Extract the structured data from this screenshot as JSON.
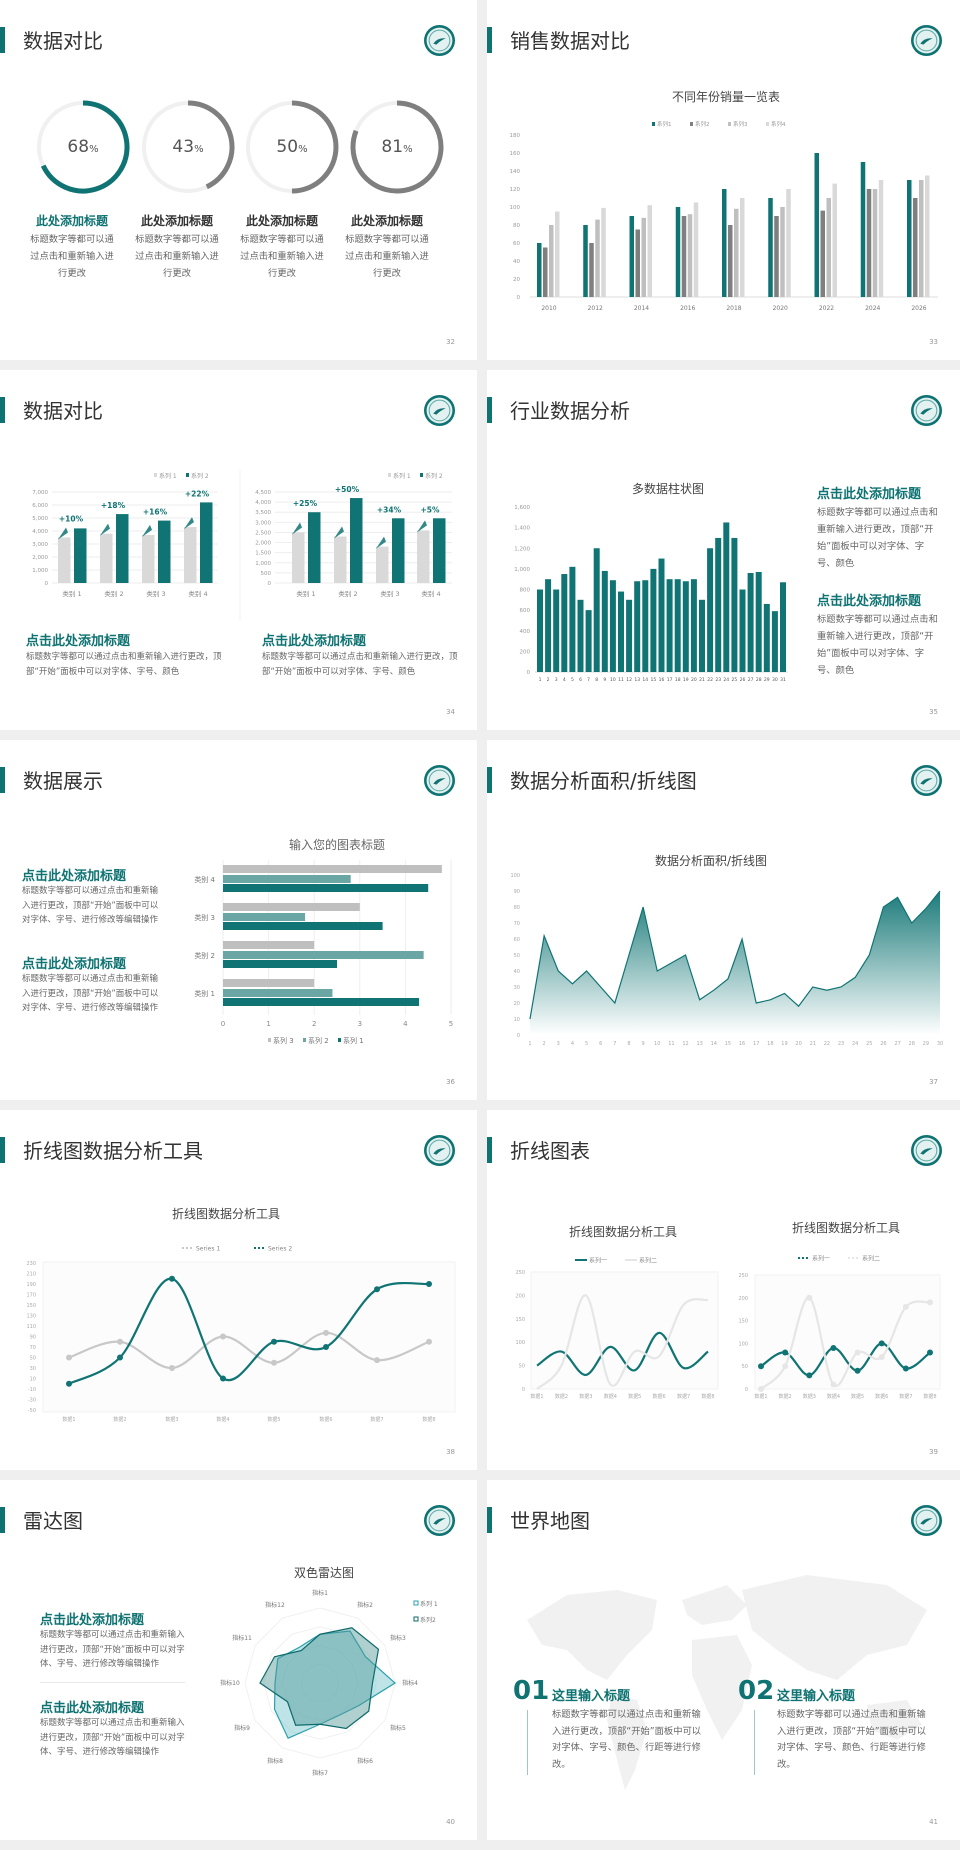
{
  "slides": [
    {
      "title": "数据对比",
      "page": "32",
      "cards": [
        {
          "value": "68",
          "unit": "%",
          "percent": 68,
          "title": "此处添加标题",
          "desc": "标题数字等都可以通过点击和重新输入进行更改"
        },
        {
          "value": "43",
          "unit": "%",
          "percent": 43,
          "title": "此处添加标题",
          "desc": "标题数字等都可以通过点击和重新输入进行更改"
        },
        {
          "value": "50",
          "unit": "%",
          "percent": 50,
          "title": "此处添加标题",
          "desc": "标题数字等都可以通过点击和重新输入进行更改"
        },
        {
          "value": "81",
          "unit": "%",
          "percent": 81,
          "title": "此处添加标题",
          "desc": "标题数字等都可以通过点击和重新输入进行更改"
        }
      ]
    },
    {
      "title": "销售数据对比",
      "page": "33"
    },
    {
      "title": "数据对比",
      "page": "34",
      "blocks": [
        {
          "title": "点击此处添加标题",
          "desc": "标题数字等都可以通过点击和重新输入进行更改，顶部“开始”面板中可以对字体、字号、颜色"
        },
        {
          "title": "点击此处添加标题",
          "desc": "标题数字等都可以通过点击和重新输入进行更改，顶部“开始”面板中可以对字体、字号、颜色"
        }
      ]
    },
    {
      "title": "行业数据分析",
      "page": "35",
      "blocks": [
        {
          "title": "点击此处添加标题",
          "desc": "标题数字等都可以通过点击和重新输入进行更改，顶部“开始”面板中可以对字体、字号、颜色"
        },
        {
          "title": "点击此处添加标题",
          "desc": "标题数字等都可以通过点击和重新输入进行更改，顶部“开始”面板中可以对字体、字号、颜色"
        }
      ]
    },
    {
      "title": "数据展示",
      "page": "36",
      "blocks": [
        {
          "title": "点击此处添加标题",
          "desc": "标题数字等都可以通过点击和重新输入进行更改，顶部“开始”面板中可以对字体、字号、进行修改等编辑操作"
        },
        {
          "title": "点击此处添加标题",
          "desc": "标题数字等都可以通过点击和重新输入进行更改，顶部“开始”面板中可以对字体、字号、进行修改等编辑操作"
        }
      ]
    },
    {
      "title": "数据分析面积/折线图",
      "page": "37"
    },
    {
      "title": "折线图数据分析工具",
      "page": "38"
    },
    {
      "title": "折线图表",
      "page": "39"
    },
    {
      "title": "雷达图",
      "page": "40",
      "blocks": [
        {
          "title": "点击此处添加标题",
          "desc": "标题数字等都可以通过点击和重新输入进行更改，顶部“开始”面板中可以对字体、字号、进行修改等编辑操作"
        },
        {
          "title": "点击此处添加标题",
          "desc": "标题数字等都可以通过点击和重新输入进行更改，顶部“开始”面板中可以对字体、字号、进行修改等编辑操作"
        }
      ]
    },
    {
      "title": "世界地图",
      "page": "41",
      "items": [
        {
          "num": "01",
          "title": "这里输入标题",
          "desc": "标题数字等都可以通过点击和重新输入进行更改，顶部“开始”面板中可以对字体、字号、颜色、行距等进行修改。"
        },
        {
          "num": "02",
          "title": "这里输入标题",
          "desc": "标题数字等都可以通过点击和重新输入进行更改，顶部“开始”面板中可以对字体、字号、颜色、行距等进行修改。"
        }
      ]
    }
  ],
  "colors": {
    "accent": "#0e7372",
    "ring_other": "#7f7f7f",
    "ring_track": "#f0f0f0"
  },
  "chart_data": [
    {
      "type": "bar",
      "title": "不同年份销量一览表",
      "categories": [
        "2010",
        "2012",
        "2014",
        "2016",
        "2018",
        "2020",
        "2022",
        "2024",
        "2026"
      ],
      "ylim": [
        0,
        180
      ],
      "yticks": [
        0,
        20,
        40,
        60,
        80,
        100,
        120,
        140,
        160,
        180
      ],
      "legend": "top",
      "series": [
        {
          "name": "系列1",
          "color": "#0f7473",
          "values": [
            60,
            80,
            90,
            100,
            120,
            110,
            160,
            150,
            130
          ]
        },
        {
          "name": "系列2",
          "color": "#7f7f7f",
          "values": [
            55,
            60,
            75,
            90,
            80,
            90,
            96,
            120,
            110
          ]
        },
        {
          "name": "系列3",
          "color": "#bfbfbf",
          "values": [
            80,
            86,
            88,
            92,
            98,
            100,
            110,
            120,
            130
          ]
        },
        {
          "name": "系列4",
          "color": "#d9d9d9",
          "values": [
            95,
            99,
            102,
            105,
            110,
            120,
            126,
            130,
            135
          ]
        }
      ]
    },
    {
      "type": "bar",
      "title": "",
      "categories": [
        "类别 1",
        "类别 2",
        "类别 3",
        "类别 4"
      ],
      "ylim": [
        0,
        7000
      ],
      "yticks": [
        "0",
        "1,000",
        "2,000",
        "3,000",
        "4,000",
        "5,000",
        "6,000",
        "7,000"
      ],
      "grid": true,
      "legend": "top-right",
      "series": [
        {
          "name": "系列 1",
          "color": "#d9d9d9",
          "values": [
            3500,
            3800,
            3700,
            4300
          ]
        },
        {
          "name": "系列 2",
          "color": "#0f7473",
          "values": [
            4200,
            5300,
            4800,
            6200
          ]
        }
      ],
      "annotations": [
        "+10%",
        "+18%",
        "+16%",
        "+22%"
      ]
    },
    {
      "type": "bar",
      "title": "",
      "categories": [
        "类别 1",
        "类别 2",
        "类别 3",
        "类别 4"
      ],
      "ylim": [
        0,
        4500
      ],
      "yticks": [
        "0",
        "500",
        "1,000",
        "1,500",
        "2,000",
        "2,500",
        "3,000",
        "3,500",
        "4,000",
        "4,500"
      ],
      "grid": true,
      "legend": "top-right",
      "series": [
        {
          "name": "系列 1",
          "color": "#d9d9d9",
          "values": [
            2500,
            2300,
            1800,
            2600
          ]
        },
        {
          "name": "系列 2",
          "color": "#0f7473",
          "values": [
            3500,
            4200,
            3200,
            3200
          ]
        }
      ],
      "annotations": [
        "+25%",
        "+50%",
        "+34%",
        "+5%"
      ]
    },
    {
      "type": "bar",
      "title": "多数据柱状图",
      "categories": [
        "1",
        "2",
        "3",
        "4",
        "5",
        "6",
        "7",
        "8",
        "9",
        "10",
        "11",
        "12",
        "13",
        "14",
        "15",
        "16",
        "17",
        "18",
        "19",
        "20",
        "21",
        "22",
        "23",
        "24",
        "25",
        "26",
        "27",
        "28",
        "29",
        "30",
        "31"
      ],
      "ylim": [
        0,
        1600
      ],
      "yticks": [
        "0",
        "200",
        "400",
        "600",
        "800",
        "1,000",
        "1,200",
        "1,400",
        "1,600"
      ],
      "color": "#0f7473",
      "values": [
        800,
        900,
        800,
        950,
        1020,
        700,
        600,
        1200,
        980,
        890,
        780,
        700,
        880,
        890,
        1000,
        1100,
        900,
        900,
        880,
        900,
        700,
        1200,
        1300,
        1450,
        1300,
        800,
        960,
        970,
        660,
        590,
        870
      ]
    },
    {
      "type": "bar",
      "orientation": "horizontal",
      "title": "输入您的图表标题",
      "categories": [
        "类别 1",
        "类别 2",
        "类别 3",
        "类别 4"
      ],
      "xlim": [
        0,
        5
      ],
      "xticks": [
        0,
        1,
        2,
        3,
        4,
        5
      ],
      "grid": true,
      "legend": "bottom",
      "series": [
        {
          "name": "系列 3",
          "color": "#bfbfbf",
          "values": [
            2.0,
            2.0,
            3.0,
            4.8
          ]
        },
        {
          "name": "系列 2",
          "color": "#6aa6a3",
          "values": [
            2.4,
            4.4,
            1.8,
            2.8
          ]
        },
        {
          "name": "系列 1",
          "color": "#0f7473",
          "values": [
            4.3,
            2.5,
            3.5,
            4.5
          ]
        }
      ]
    },
    {
      "type": "area",
      "title": "数据分析面积/折线图",
      "x": [
        1,
        2,
        3,
        4,
        5,
        6,
        7,
        8,
        9,
        10,
        11,
        12,
        13,
        14,
        15,
        16,
        17,
        18,
        19,
        20,
        21,
        22,
        23,
        24,
        25,
        26,
        27,
        28,
        29,
        30
      ],
      "ylim": [
        0,
        100
      ],
      "yticks": [
        0,
        10,
        20,
        30,
        40,
        50,
        60,
        70,
        80,
        90,
        100
      ],
      "color": "#0f7473",
      "values": [
        10,
        62,
        40,
        32,
        40,
        30,
        20,
        50,
        80,
        40,
        45,
        50,
        22,
        28,
        35,
        60,
        20,
        22,
        26,
        18,
        30,
        28,
        30,
        36,
        50,
        80,
        86,
        70,
        79,
        90
      ]
    },
    {
      "type": "line",
      "smooth": true,
      "title": "折线图数据分析工具",
      "categories": [
        "数据1",
        "数据2",
        "数据3",
        "数据4",
        "数据5",
        "数据6",
        "数据7",
        "数据8"
      ],
      "ylim": [
        -50,
        230
      ],
      "yticks": [
        -50,
        -30,
        -10,
        10,
        30,
        50,
        70,
        90,
        110,
        130,
        150,
        170,
        190,
        210,
        230
      ],
      "legend": "top",
      "series": [
        {
          "name": "Series 1",
          "color": "#c8c8c8",
          "values": [
            50,
            80,
            30,
            90,
            40,
            97,
            45,
            80
          ]
        },
        {
          "name": "Series 2",
          "color": "#0f7473",
          "values": [
            0,
            50,
            200,
            10,
            80,
            70,
            180,
            190
          ]
        }
      ]
    },
    {
      "type": "line",
      "smooth": true,
      "title": "折线图数据分析工具",
      "categories": [
        "数据1",
        "数据2",
        "数据3",
        "数据4",
        "数据5",
        "数据6",
        "数据7",
        "数据8"
      ],
      "ylim": [
        0,
        250
      ],
      "yticks": [
        0,
        50,
        100,
        150,
        200,
        250
      ],
      "legend": "top",
      "series": [
        {
          "name": "系列一",
          "color": "#0f7473",
          "values": [
            50,
            80,
            30,
            90,
            40,
            120,
            45,
            80
          ]
        },
        {
          "name": "系列二",
          "color": "#e6e6e6",
          "values": [
            0,
            50,
            200,
            10,
            80,
            70,
            180,
            190
          ]
        }
      ]
    },
    {
      "type": "line",
      "smooth": true,
      "markers": true,
      "title": "折线图数据分析工具",
      "categories": [
        "数据1",
        "数据2",
        "数据3",
        "数据4",
        "数据5",
        "数据6",
        "数据7",
        "数据8"
      ],
      "ylim": [
        0,
        250
      ],
      "yticks": [
        0,
        50,
        100,
        150,
        200,
        250
      ],
      "legend": "top",
      "series": [
        {
          "name": "系列一",
          "color": "#0f7473",
          "values": [
            50,
            80,
            30,
            90,
            40,
            100,
            45,
            80
          ]
        },
        {
          "name": "系列二",
          "color": "#e6e6e6",
          "values": [
            0,
            50,
            200,
            10,
            80,
            70,
            180,
            190
          ]
        }
      ]
    },
    {
      "type": "radar",
      "title": "双色雷达图",
      "categories": [
        "指标1",
        "指标2",
        "指标3",
        "指标4",
        "指标5",
        "指标6",
        "指标7",
        "指标8",
        "指标9",
        "指标10",
        "指标11",
        "指标12"
      ],
      "ylim": [
        0,
        100
      ],
      "legend": "top-right",
      "series": [
        {
          "name": "系列 1",
          "color": "#2aa1ad",
          "values": [
            65,
            80,
            70,
            100,
            60,
            50,
            55,
            85,
            70,
            60,
            65,
            55
          ]
        },
        {
          "name": "系列2",
          "color": "#0e6a6a",
          "values": [
            65,
            85,
            90,
            70,
            75,
            70,
            55,
            65,
            50,
            80,
            70,
            50
          ]
        }
      ]
    }
  ]
}
